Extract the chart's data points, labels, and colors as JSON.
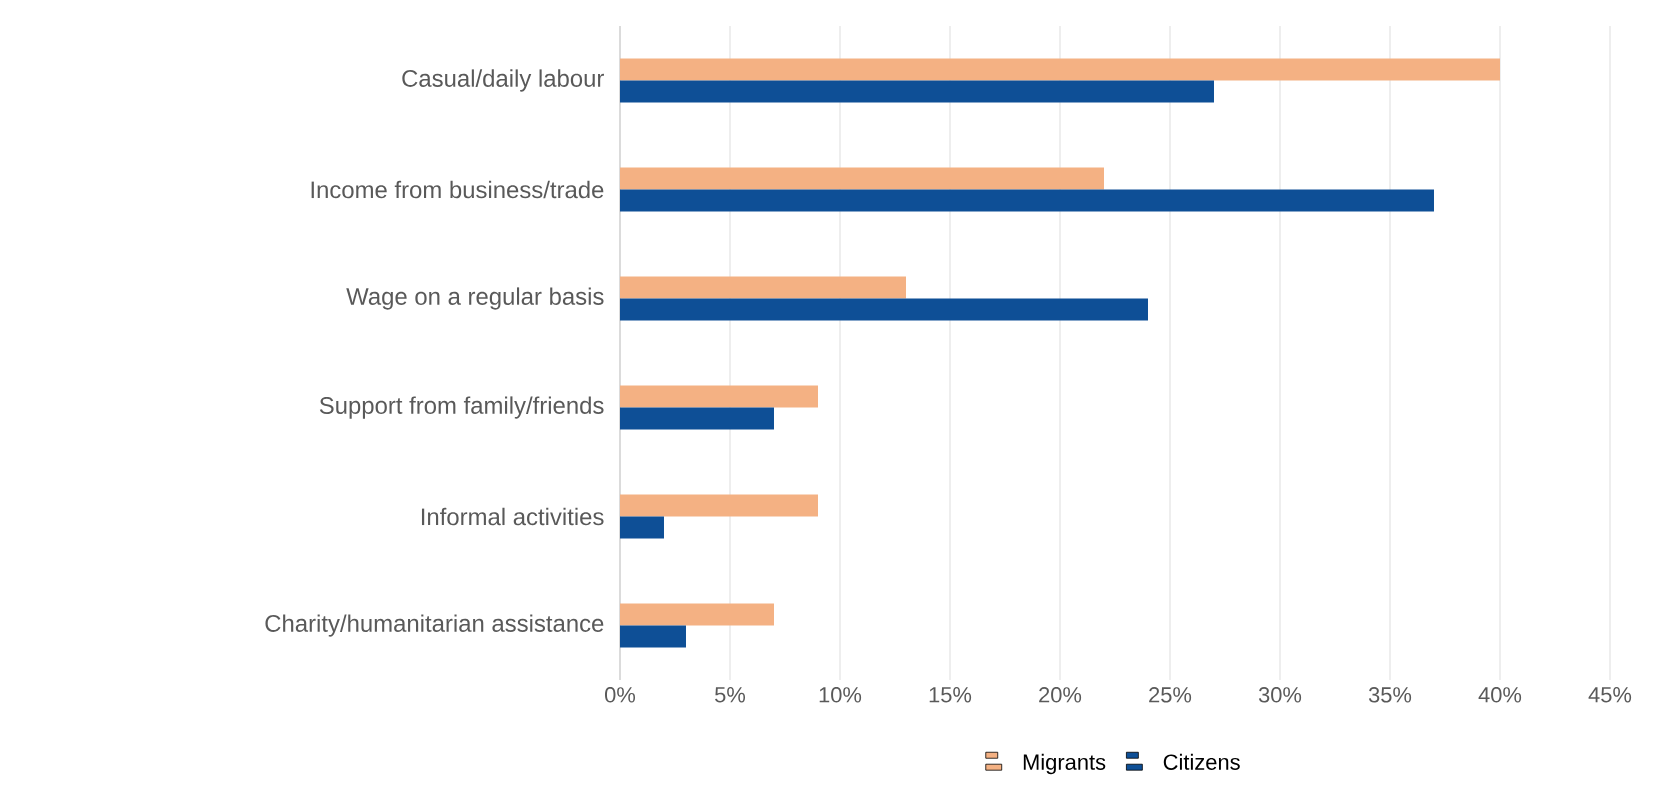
{
  "chart_data": {
    "type": "bar",
    "orientation": "horizontal",
    "categories": [
      "Casual/daily labour",
      "Income from business/trade",
      "Wage on a regular basis",
      "Support from family/friends",
      "Informal activities",
      "Charity/humanitarian assistance"
    ],
    "series": [
      {
        "name": "Migrants",
        "color": "#f4b183",
        "values": [
          40,
          22,
          13,
          9,
          9,
          7
        ]
      },
      {
        "name": "Citizens",
        "color": "#0e4f96",
        "values": [
          27,
          37,
          24,
          7,
          2,
          3
        ]
      }
    ],
    "xlim": [
      0,
      45
    ],
    "xticks": [
      {
        "value": 0,
        "label": "0%"
      },
      {
        "value": 5,
        "label": "5%"
      },
      {
        "value": 10,
        "label": "10%"
      },
      {
        "value": 15,
        "label": "15%"
      },
      {
        "value": 20,
        "label": "20%"
      },
      {
        "value": 25,
        "label": "25%"
      },
      {
        "value": 30,
        "label": "30%"
      },
      {
        "value": 35,
        "label": "35%"
      },
      {
        "value": 40,
        "label": "40%"
      },
      {
        "value": 45,
        "label": "45%"
      }
    ],
    "grid": "x",
    "legend": "bottom"
  }
}
